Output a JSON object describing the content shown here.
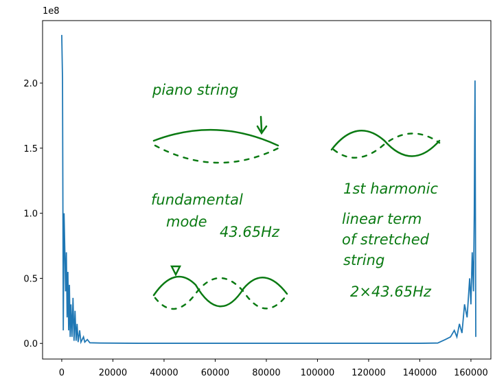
{
  "chart_data": {
    "type": "line",
    "offset_label": "1e8",
    "color": "#1f77b4",
    "x": [
      0,
      300,
      600,
      900,
      1200,
      1500,
      1800,
      2100,
      2400,
      2700,
      3000,
      3300,
      3600,
      4000,
      4400,
      4800,
      5200,
      5600,
      6000,
      6400,
      7000,
      7500,
      8500,
      9000,
      10000,
      11000,
      15000,
      30000,
      60000,
      90000,
      120000,
      140000,
      147000,
      150000,
      152000,
      153500,
      154500,
      155500,
      156500,
      157500,
      158500,
      159500,
      160000,
      160500,
      161000,
      161300,
      161600,
      161900
    ],
    "values": [
      2.37,
      2.03,
      0.1,
      1.0,
      0.72,
      0.4,
      0.7,
      0.2,
      0.55,
      0.1,
      0.45,
      0.05,
      0.3,
      0.05,
      0.35,
      0.02,
      0.25,
      0.02,
      0.15,
      0.01,
      0.1,
      0.01,
      0.05,
      0.01,
      0.03,
      0.005,
      0.003,
      0.001,
      0.001,
      0.001,
      0.001,
      0.001,
      0.003,
      0.03,
      0.05,
      0.1,
      0.05,
      0.15,
      0.08,
      0.3,
      0.2,
      0.5,
      0.3,
      0.7,
      0.4,
      1.0,
      2.02,
      0.05
    ],
    "xlim": [
      -7500,
      167800
    ],
    "ylim": [
      -0.12,
      2.48
    ],
    "xticks": [
      0,
      20000,
      40000,
      60000,
      80000,
      100000,
      120000,
      140000,
      160000
    ],
    "yticks": [
      {
        "value": 0,
        "label": "0.0"
      },
      {
        "value": 0.5,
        "label": "0.5"
      },
      {
        "value": 1,
        "label": "1.0"
      },
      {
        "value": 1.5,
        "label": "1.5"
      },
      {
        "value": 2,
        "label": "2.0"
      }
    ],
    "annotations": [
      "piano string",
      "fundamental",
      "mode",
      "43.65Hz",
      "1st harmonic",
      "linear term",
      "of stretched",
      "string",
      "2×43.65Hz"
    ]
  }
}
